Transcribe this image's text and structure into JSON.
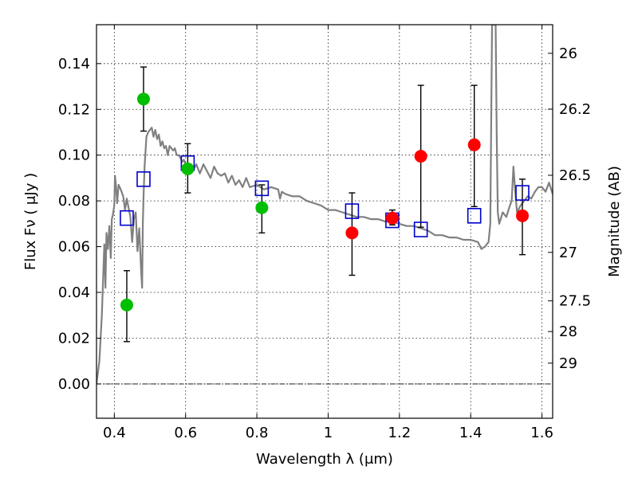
{
  "chart_data": {
    "type": "scatter",
    "xlabel": "Wavelength  λ (μm)",
    "ylabel": "Flux  Fν  ( μJy )",
    "ylabel_right": "Magnitude (AB)",
    "xlim": [
      0.35,
      1.63
    ],
    "ylim": [
      -0.015,
      0.157
    ],
    "grid": true,
    "x_ticks": [
      0.4,
      0.6,
      0.8,
      1.0,
      1.2,
      1.4,
      1.6
    ],
    "x_tick_labels": [
      "0.4",
      "0.6",
      "0.8",
      "1",
      "1.2",
      "1.4",
      "1.6"
    ],
    "y_ticks": [
      0.0,
      0.02,
      0.04,
      0.06,
      0.08,
      0.1,
      0.12,
      0.14
    ],
    "y_tick_labels": [
      "0.00",
      "0.02",
      "0.04",
      "0.06",
      "0.08",
      "0.10",
      "0.12",
      "0.14"
    ],
    "right_ticks": [
      {
        "label": "26",
        "flux": 0.1445
      },
      {
        "label": "26.2",
        "flux": 0.1201
      },
      {
        "label": "26.5",
        "flux": 0.0912
      },
      {
        "label": "27",
        "flux": 0.0575
      },
      {
        "label": "27.5",
        "flux": 0.0363
      },
      {
        "label": "28",
        "flux": 0.0229
      },
      {
        "label": "29",
        "flux": 0.0091
      }
    ],
    "zero_line": 0.0,
    "series": [
      {
        "name": "model spectrum",
        "kind": "line",
        "color": "#808080",
        "x": [
          0.35,
          0.358,
          0.365,
          0.372,
          0.375,
          0.378,
          0.382,
          0.386,
          0.39,
          0.393,
          0.396,
          0.4,
          0.402,
          0.405,
          0.408,
          0.412,
          0.418,
          0.425,
          0.43,
          0.435,
          0.44,
          0.445,
          0.45,
          0.455,
          0.46,
          0.465,
          0.47,
          0.475,
          0.478,
          0.48,
          0.482,
          0.485,
          0.49,
          0.495,
          0.5,
          0.505,
          0.51,
          0.515,
          0.52,
          0.525,
          0.53,
          0.535,
          0.54,
          0.545,
          0.55,
          0.555,
          0.56,
          0.565,
          0.57,
          0.575,
          0.58,
          0.585,
          0.59,
          0.595,
          0.6,
          0.61,
          0.62,
          0.63,
          0.64,
          0.65,
          0.66,
          0.67,
          0.68,
          0.69,
          0.7,
          0.71,
          0.72,
          0.73,
          0.74,
          0.75,
          0.76,
          0.77,
          0.78,
          0.8,
          0.82,
          0.84,
          0.86,
          0.865,
          0.87,
          0.88,
          0.9,
          0.92,
          0.94,
          0.96,
          0.98,
          1.0,
          1.02,
          1.04,
          1.06,
          1.08,
          1.1,
          1.12,
          1.14,
          1.16,
          1.18,
          1.2,
          1.22,
          1.24,
          1.26,
          1.28,
          1.3,
          1.32,
          1.34,
          1.36,
          1.38,
          1.4,
          1.42,
          1.43,
          1.44,
          1.45,
          1.455,
          1.46,
          1.463,
          1.466,
          1.47,
          1.473,
          1.476,
          1.48,
          1.49,
          1.5,
          1.51,
          1.515,
          1.52,
          1.525,
          1.53,
          1.54,
          1.55,
          1.56,
          1.57,
          1.58,
          1.59,
          1.6,
          1.61,
          1.62,
          1.63
        ],
        "y": [
          0.0,
          0.01,
          0.03,
          0.061,
          0.042,
          0.066,
          0.059,
          0.069,
          0.055,
          0.072,
          0.074,
          0.078,
          0.091,
          0.086,
          0.079,
          0.087,
          0.085,
          0.082,
          0.076,
          0.081,
          0.077,
          0.073,
          0.062,
          0.072,
          0.075,
          0.058,
          0.068,
          0.05,
          0.042,
          0.07,
          0.082,
          0.095,
          0.108,
          0.11,
          0.111,
          0.112,
          0.108,
          0.111,
          0.107,
          0.109,
          0.104,
          0.106,
          0.103,
          0.104,
          0.1,
          0.104,
          0.103,
          0.102,
          0.103,
          0.1,
          0.1,
          0.099,
          0.097,
          0.098,
          0.096,
          0.095,
          0.093,
          0.096,
          0.092,
          0.096,
          0.093,
          0.09,
          0.095,
          0.092,
          0.091,
          0.092,
          0.088,
          0.091,
          0.087,
          0.089,
          0.086,
          0.09,
          0.086,
          0.087,
          0.085,
          0.086,
          0.085,
          0.081,
          0.084,
          0.083,
          0.082,
          0.082,
          0.08,
          0.079,
          0.078,
          0.076,
          0.076,
          0.075,
          0.074,
          0.073,
          0.073,
          0.072,
          0.072,
          0.071,
          0.071,
          0.07,
          0.069,
          0.069,
          0.068,
          0.067,
          0.065,
          0.065,
          0.064,
          0.064,
          0.063,
          0.063,
          0.062,
          0.059,
          0.06,
          0.062,
          0.07,
          0.157,
          0.157,
          0.157,
          0.157,
          0.11,
          0.075,
          0.07,
          0.075,
          0.073,
          0.078,
          0.08,
          0.095,
          0.084,
          0.075,
          0.078,
          0.08,
          0.082,
          0.081,
          0.084,
          0.086,
          0.086,
          0.084,
          0.088,
          0.083
        ]
      },
      {
        "name": "green photometry",
        "kind": "point",
        "marker": "circle",
        "color": "#00bf00",
        "x": [
          0.435,
          0.482,
          0.606,
          0.814
        ],
        "y": [
          0.0345,
          0.1245,
          0.094,
          0.077
        ],
        "yerr_low": [
          0.0185,
          0.1105,
          0.0835,
          0.066
        ],
        "yerr_high": [
          0.0495,
          0.1385,
          0.105,
          0.087
        ]
      },
      {
        "name": "red photometry",
        "kind": "point",
        "marker": "circle",
        "color": "#ff0000",
        "x": [
          1.067,
          1.18,
          1.26,
          1.41,
          1.545
        ],
        "y": [
          0.066,
          0.0725,
          0.0995,
          0.1045,
          0.0735
        ],
        "yerr_low": [
          0.0475,
          0.0695,
          0.0685,
          0.0775,
          0.0565
        ],
        "yerr_high": [
          0.0835,
          0.076,
          0.1305,
          0.1305,
          0.0895
        ]
      },
      {
        "name": "model magnitudes",
        "kind": "point",
        "marker": "square",
        "color": "#0000cc",
        "x": [
          0.435,
          0.482,
          0.606,
          0.814,
          1.067,
          1.18,
          1.26,
          1.41,
          1.545
        ],
        "y": [
          0.0725,
          0.0895,
          0.0965,
          0.0855,
          0.0755,
          0.0715,
          0.0675,
          0.0735,
          0.0835
        ]
      }
    ]
  }
}
